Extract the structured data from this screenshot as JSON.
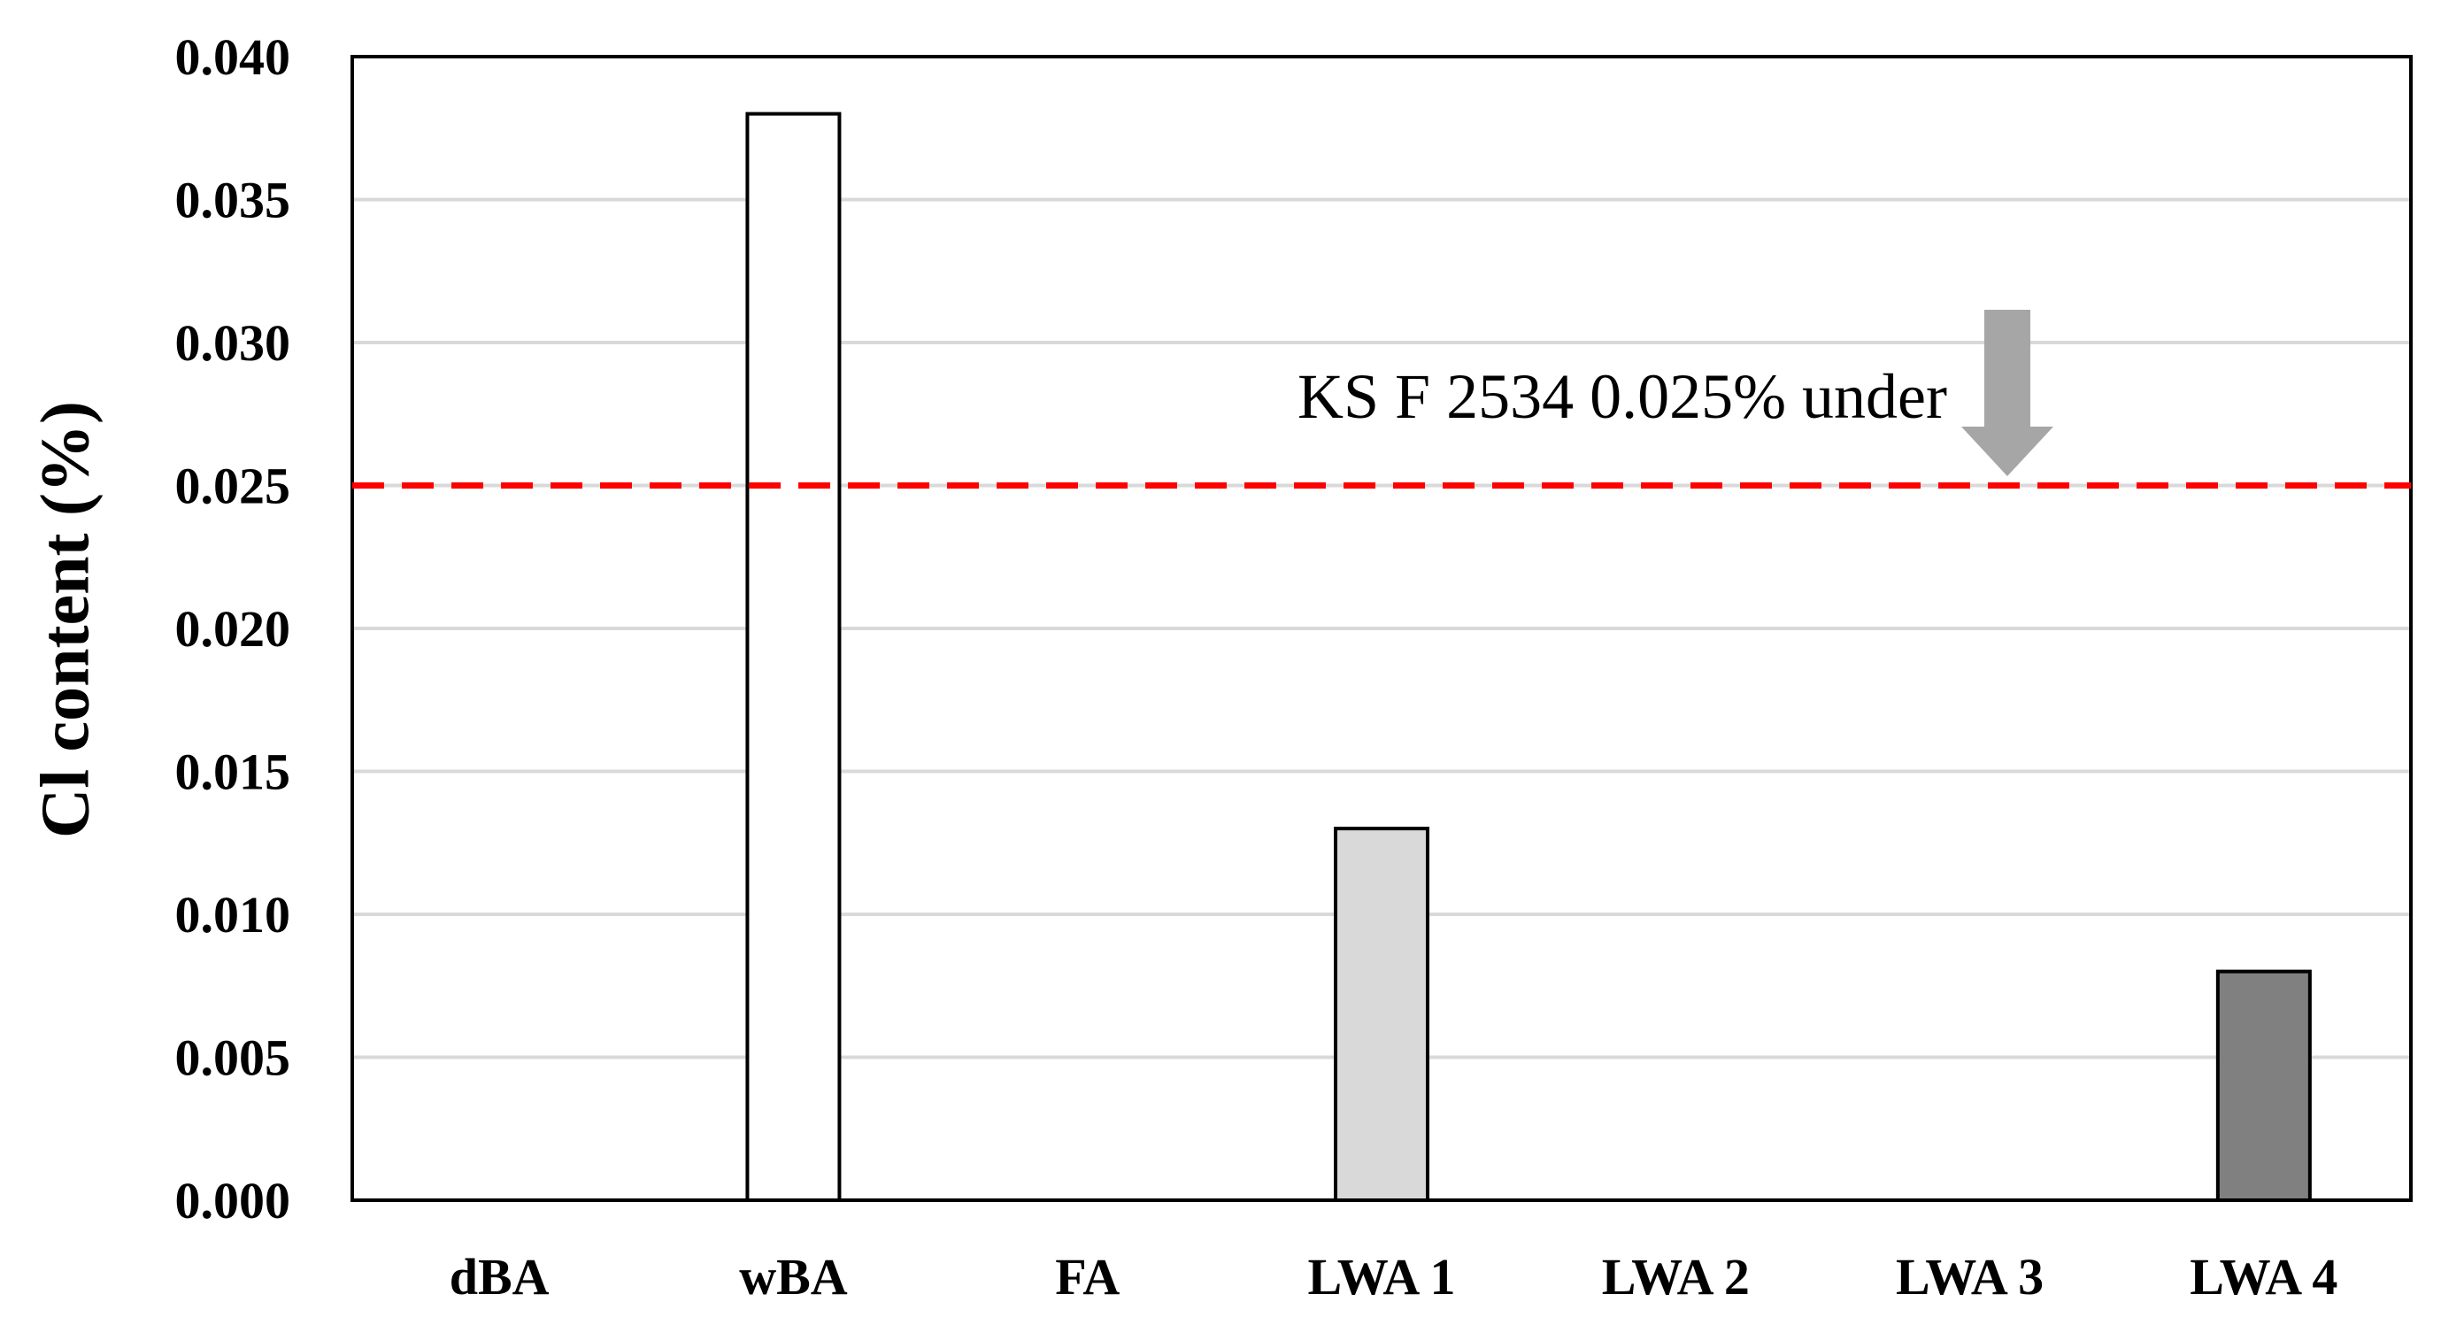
{
  "chart_data": {
    "type": "bar",
    "categories": [
      "dBA",
      "wBA",
      "FA",
      "LWA 1",
      "LWA 2",
      "LWA 3",
      "LWA 4"
    ],
    "values": [
      0,
      0.038,
      0,
      0.013,
      0,
      0,
      0.008
    ],
    "bar_colors": [
      "#ffffff",
      "#ffffff",
      "#ffffff",
      "#d9d9d9",
      "#ffffff",
      "#ffffff",
      "#808080"
    ],
    "title": "",
    "xlabel": "",
    "ylabel": "Cl content (%)",
    "ylim": [
      0,
      0.04
    ],
    "yticks": [
      "0.000",
      "0.005",
      "0.010",
      "0.015",
      "0.020",
      "0.025",
      "0.030",
      "0.035",
      "0.040"
    ],
    "grid": true,
    "reference_line": {
      "value": 0.025,
      "label": "KS F 2534 0.025% under",
      "color": "#ff0000",
      "style": "dashed"
    },
    "annotation_arrow": {
      "direction": "down",
      "color": "#a6a6a6"
    }
  }
}
